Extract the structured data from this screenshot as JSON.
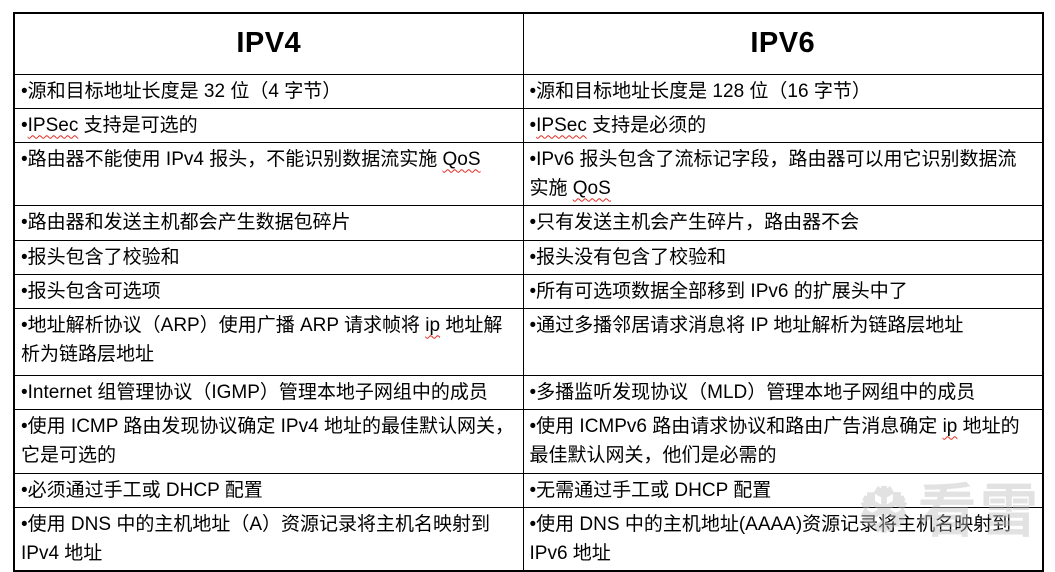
{
  "colors": {
    "border": "#000000",
    "text": "#000000",
    "squiggle": "#e02b20",
    "watermark": "rgba(190,190,190,0.45)"
  },
  "table": {
    "headers": [
      {
        "label": "IPV4"
      },
      {
        "label": "IPV6"
      }
    ],
    "rows": [
      {
        "left": [
          {
            "text": "•源和目标地址长度是 32 位（4 字节）"
          }
        ],
        "right": [
          {
            "text": "•源和目标地址长度是 128 位（16 字节）"
          }
        ]
      },
      {
        "left": [
          {
            "text": "•"
          },
          {
            "text": "IPSec",
            "wavy": true
          },
          {
            "text": " 支持是可选的"
          }
        ],
        "right": [
          {
            "text": "•"
          },
          {
            "text": "IPSec",
            "wavy": true
          },
          {
            "text": " 支持是必须的"
          }
        ]
      },
      {
        "left": [
          {
            "text": "•路由器不能使用 IPv4 报头，不能识别数据流实施 "
          },
          {
            "text": "QoS",
            "wavy": true
          }
        ],
        "right": [
          {
            "text": "•IPv6 报头包含了流标记字段，路由器可以用它识别数据流实施 "
          },
          {
            "text": "QoS",
            "wavy": true
          }
        ]
      },
      {
        "left": [
          {
            "text": "•路由器和发送主机都会产生数据包碎片"
          }
        ],
        "right": [
          {
            "text": "•只有发送主机会产生碎片，路由器不会"
          }
        ]
      },
      {
        "left": [
          {
            "text": "•报头包含了校验和"
          }
        ],
        "right": [
          {
            "text": "•报头没有包含了校验和"
          }
        ]
      },
      {
        "left": [
          {
            "text": "•报头包含可选项"
          }
        ],
        "right": [
          {
            "text": "•所有可选项数据全部移到 IPv6 的扩展头中了"
          }
        ]
      },
      {
        "left": [
          {
            "text": "•地址解析协议（ARP）使用广播 ARP 请求帧将 "
          },
          {
            "text": "ip",
            "wavy": true
          },
          {
            "text": " 地址解析为链路层地址"
          }
        ],
        "right": [
          {
            "text": "•通过多播邻居请求消息将 IP 地址解析为链路层地址"
          }
        ]
      },
      {
        "left": [
          {
            "text": "•Internet 组管理协议（IGMP）管理本地子网组中的成员"
          }
        ],
        "right": [
          {
            "text": "•多播监听发现协议（MLD）管理本地子网组中的成员"
          }
        ]
      },
      {
        "left": [
          {
            "text": "•使用 ICMP 路由发现协议确定 IPv4 地址的最佳默认网关，它是可选的"
          }
        ],
        "right": [
          {
            "text": "•使用 ICMPv6 路由请求协议和路由广告消息确定 "
          },
          {
            "text": "ip",
            "wavy": true
          },
          {
            "text": " 地址的最佳默认网关，他们是必需的"
          }
        ]
      },
      {
        "left": [
          {
            "text": "•必须通过手工或 DHCP 配置"
          }
        ],
        "right": [
          {
            "text": "•无需通过手工或 DHCP 配置"
          }
        ]
      },
      {
        "left": [
          {
            "text": "•使用 DNS 中的主机地址（A）资源记录将主机名映射到 IPv4 地址"
          }
        ],
        "right": [
          {
            "text": "•使用 DNS 中的主机地址(AAAA)资源记录将主机名映射到 IPv6 地址"
          }
        ]
      }
    ]
  },
  "watermark": {
    "icon_glyph": "❆",
    "text": "看雪"
  }
}
